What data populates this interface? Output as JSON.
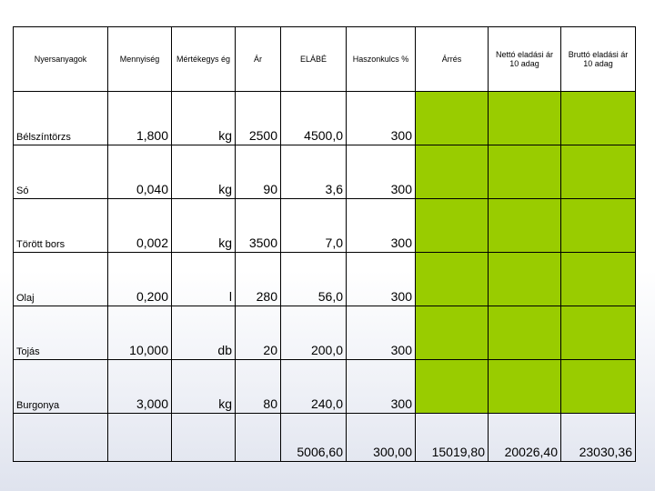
{
  "accent_color": "#99cc00",
  "headers": [
    "Nyersanyagok",
    "Mennyiség",
    "Mértékegys ég",
    "Ár",
    "ELÁBÉ",
    "Haszonkulcs %",
    "Árrés",
    "Nettó eladási ár 10 adag",
    "Bruttó eladási ár 10 adag"
  ],
  "rows": [
    {
      "name": "Bélszíntörzs",
      "qty": "1,800",
      "unit": "kg",
      "price": "2500",
      "elabe": "4500,0",
      "margin": "300"
    },
    {
      "name": "Só",
      "qty": "0,040",
      "unit": "kg",
      "price": "90",
      "elabe": "3,6",
      "margin": "300"
    },
    {
      "name": "Törött bors",
      "qty": "0,002",
      "unit": "kg",
      "price": "3500",
      "elabe": "7,0",
      "margin": "300"
    },
    {
      "name": "Olaj",
      "qty": "0,200",
      "unit": "l",
      "price": "280",
      "elabe": "56,0",
      "margin": "300"
    },
    {
      "name": "Tojás",
      "qty": "10,000",
      "unit": "db",
      "price": "20",
      "elabe": "200,0",
      "margin": "300"
    },
    {
      "name": "Burgonya",
      "qty": "3,000",
      "unit": "kg",
      "price": "80",
      "elabe": "240,0",
      "margin": "300"
    }
  ],
  "totals": {
    "elabe": "5006,60",
    "margin": "300,00",
    "arres": "15019,80",
    "net": "20026,40",
    "gross": "23030,36"
  }
}
